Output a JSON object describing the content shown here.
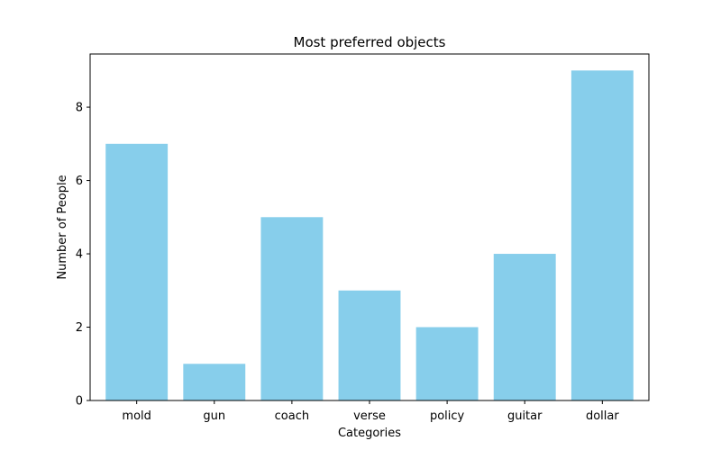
{
  "chart_data": {
    "type": "bar",
    "title": "Most preferred objects",
    "xlabel": "Categories",
    "ylabel": "Number of People",
    "categories": [
      "mold",
      "gun",
      "coach",
      "verse",
      "policy",
      "guitar",
      "dollar"
    ],
    "values": [
      7,
      1,
      5,
      3,
      2,
      4,
      9
    ],
    "ylim": [
      0,
      9.45
    ],
    "yticks": [
      0,
      2,
      4,
      6,
      8
    ],
    "grid": false,
    "bar_color": "#87ceeb",
    "axis_color": "#000000"
  }
}
